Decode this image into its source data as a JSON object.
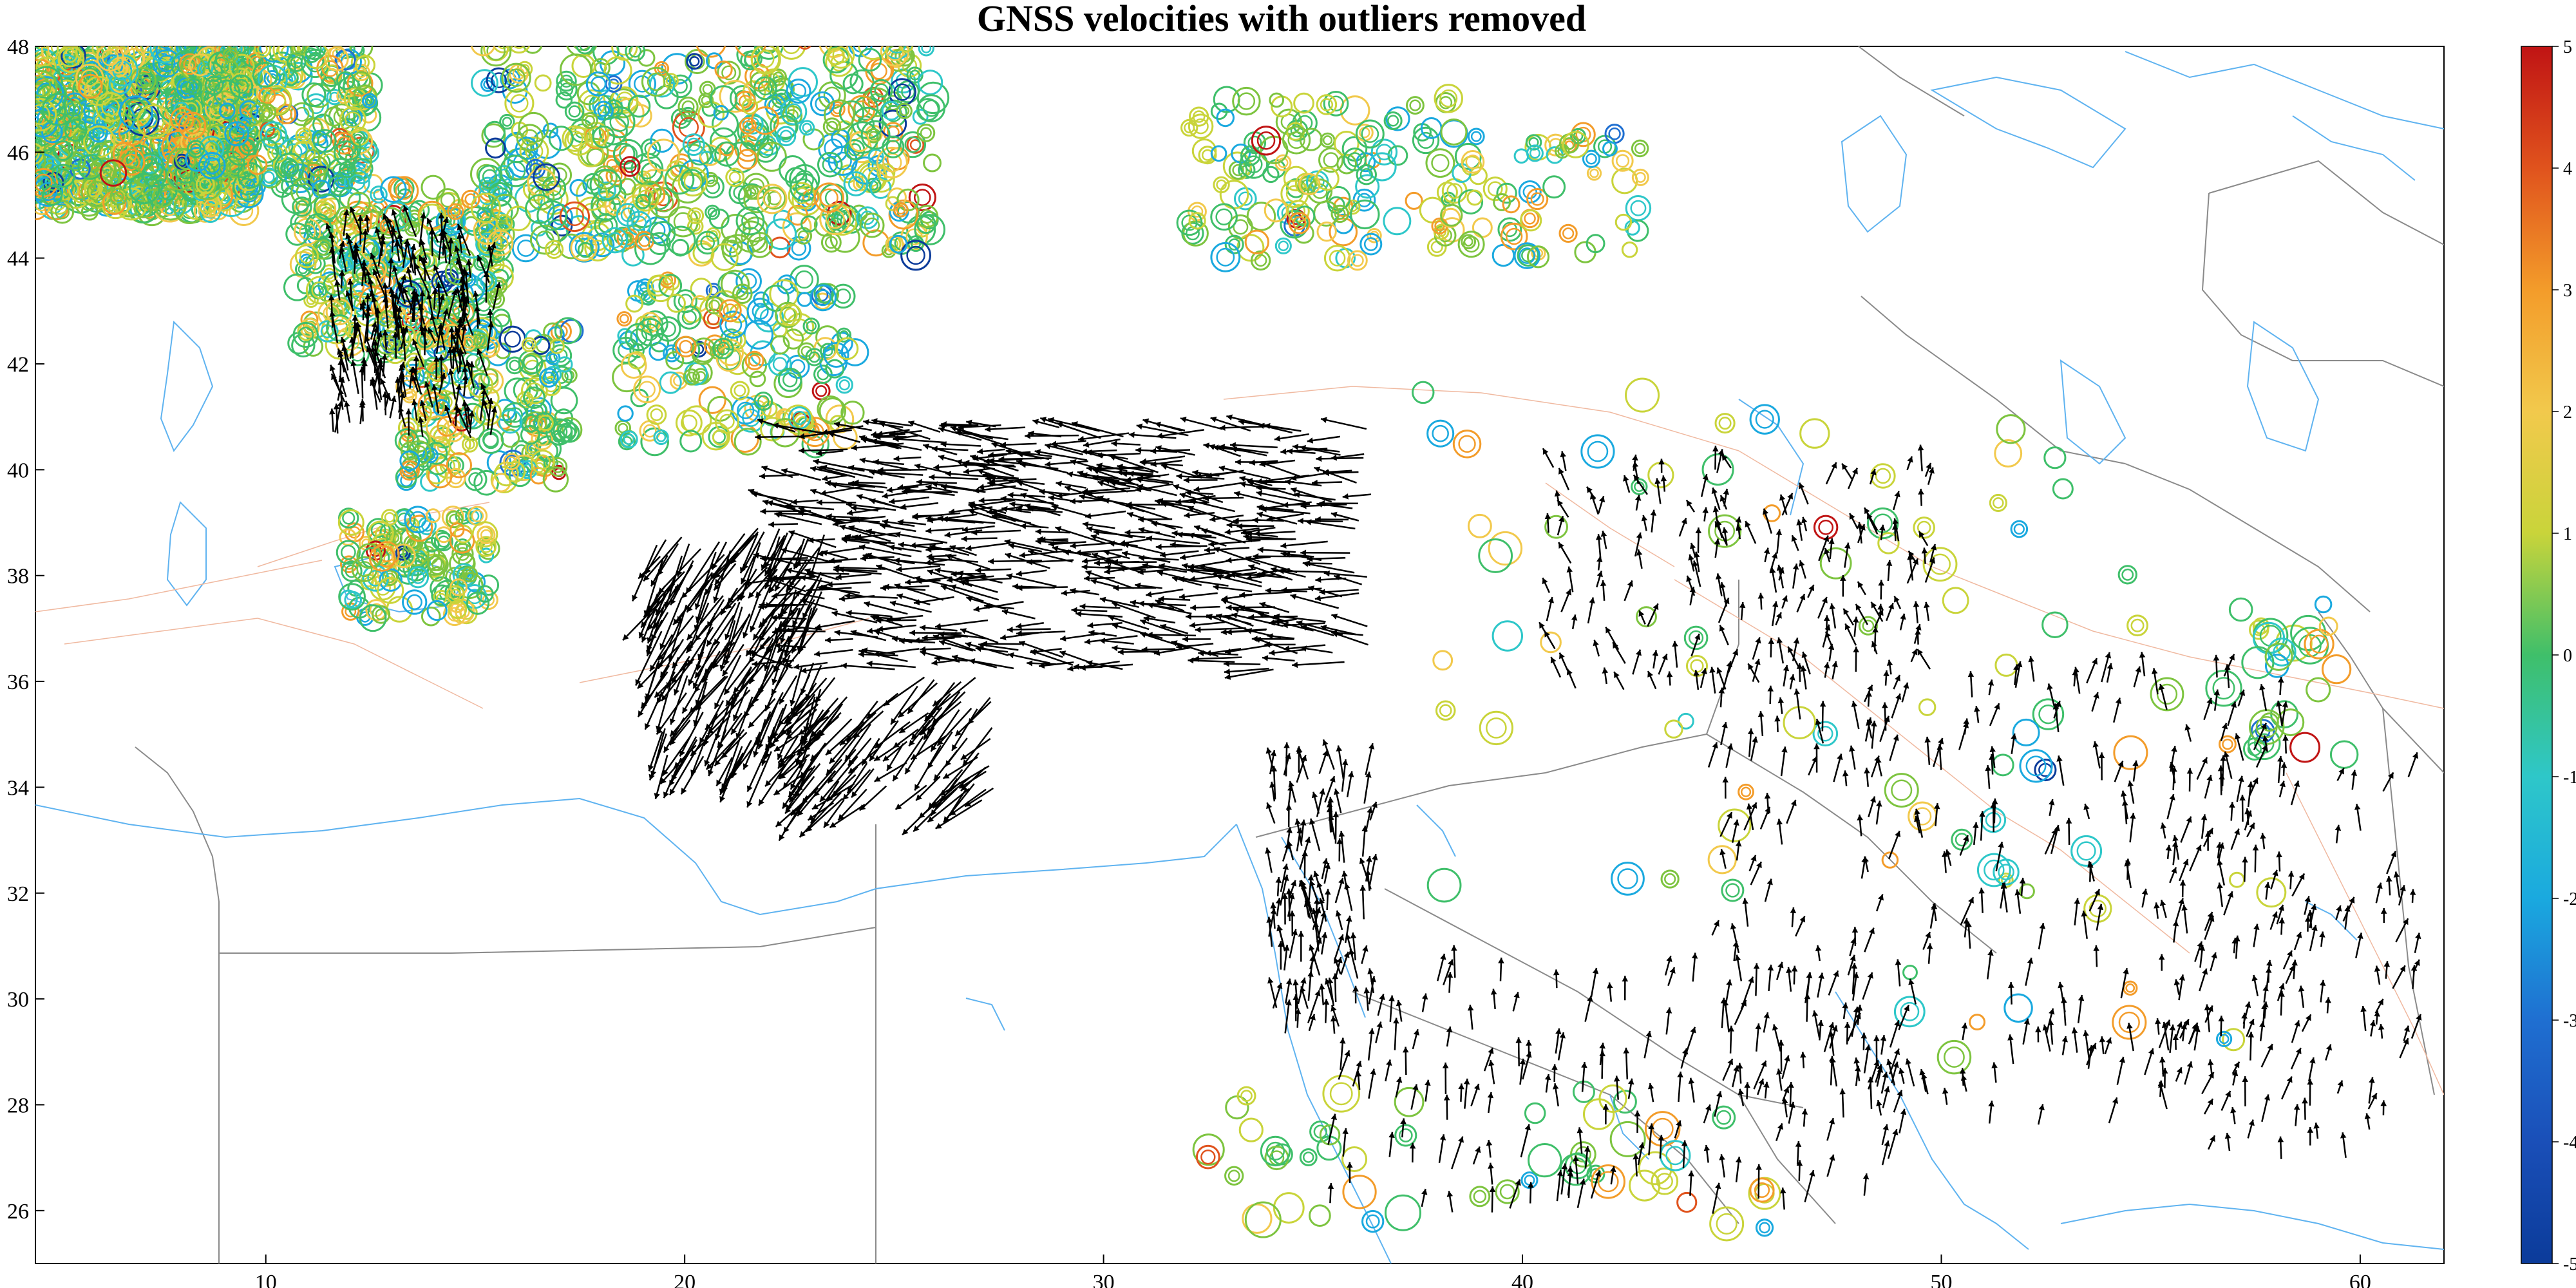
{
  "title": "GNSS velocities with outliers removed",
  "map": {
    "lon_range": [
      4.5,
      62.0
    ],
    "lat_range": [
      25.0,
      48.0
    ],
    "lon_ticks": [
      10,
      20,
      30,
      40,
      50,
      60
    ],
    "lat_ticks": [
      26,
      28,
      30,
      32,
      34,
      36,
      38,
      40,
      42,
      44,
      46,
      48
    ]
  },
  "colorbar": {
    "min": -5,
    "max": 5,
    "ticks": [
      5,
      4,
      3,
      2,
      1,
      0,
      -1,
      -2,
      -3,
      -4,
      -5
    ],
    "colormap": "parula-like",
    "colors": [
      "#0b3b9a",
      "#1f6fd1",
      "#1aa9df",
      "#2ec7c9",
      "#3fbf6a",
      "#7dc43f",
      "#c9d43a",
      "#f2c94c",
      "#f39c2a",
      "#e0531d",
      "#c01414"
    ]
  },
  "layers": {
    "country_borders_color": "#8a8a8a",
    "coastline_color": "#5fb3f0",
    "fault_color": "#f0b9a0",
    "arrow_color": "#000000"
  }
}
